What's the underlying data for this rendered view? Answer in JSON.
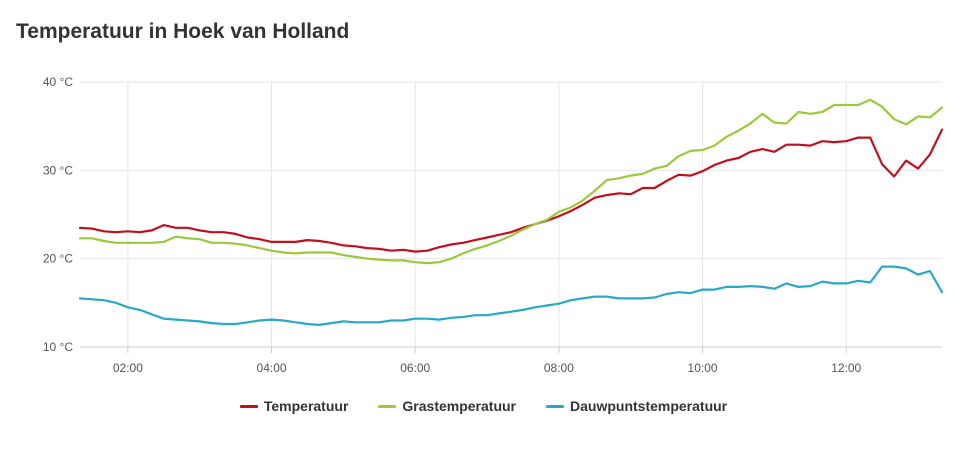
{
  "header": {
    "title": "Temperatuur in Hoek van Holland"
  },
  "chart_data": {
    "type": "line",
    "title": "Temperatuur in Hoek van Holland",
    "xlabel": "",
    "ylabel": "",
    "x_range": [
      "01:20",
      "13:20"
    ],
    "xticks": [
      "02:00",
      "04:00",
      "06:00",
      "08:00",
      "10:00",
      "12:00"
    ],
    "ylim": [
      10,
      40
    ],
    "yticks": [
      "10 °C",
      "20 °C",
      "30 °C",
      "40 °C"
    ],
    "grid": true,
    "legend_position": "bottom",
    "x": [
      "01:20",
      "01:30",
      "01:40",
      "01:50",
      "02:00",
      "02:10",
      "02:20",
      "02:30",
      "02:40",
      "02:50",
      "03:00",
      "03:10",
      "03:20",
      "03:30",
      "03:40",
      "03:50",
      "04:00",
      "04:10",
      "04:20",
      "04:30",
      "04:40",
      "04:50",
      "05:00",
      "05:10",
      "05:20",
      "05:30",
      "05:40",
      "05:50",
      "06:00",
      "06:10",
      "06:20",
      "06:30",
      "06:40",
      "06:50",
      "07:00",
      "07:10",
      "07:20",
      "07:30",
      "07:40",
      "07:50",
      "08:00",
      "08:10",
      "08:20",
      "08:30",
      "08:40",
      "08:50",
      "09:00",
      "09:10",
      "09:20",
      "09:30",
      "09:40",
      "09:50",
      "10:00",
      "10:10",
      "10:20",
      "10:30",
      "10:40",
      "10:50",
      "11:00",
      "11:10",
      "11:20",
      "11:30",
      "11:40",
      "11:50",
      "12:00",
      "12:10",
      "12:20",
      "12:30",
      "12:40",
      "12:50",
      "13:00",
      "13:10",
      "13:20"
    ],
    "series": [
      {
        "name": "Temperatuur",
        "color": "#c0101e",
        "values": [
          23.5,
          23.4,
          23.1,
          23.0,
          23.1,
          23.0,
          23.2,
          23.8,
          23.5,
          23.5,
          23.2,
          23.0,
          23.0,
          22.8,
          22.4,
          22.2,
          21.9,
          21.9,
          21.9,
          22.1,
          22.0,
          21.8,
          21.5,
          21.4,
          21.2,
          21.1,
          20.9,
          21.0,
          20.8,
          20.9,
          21.3,
          21.6,
          21.8,
          22.1,
          22.4,
          22.7,
          23.0,
          23.5,
          23.9,
          24.3,
          24.8,
          25.4,
          26.1,
          26.9,
          27.2,
          27.4,
          27.3,
          28.0,
          28.0,
          28.8,
          29.5,
          29.4,
          29.9,
          30.6,
          31.1,
          31.4,
          32.1,
          32.4,
          32.1,
          32.9,
          32.9,
          32.8,
          33.3,
          33.2,
          33.3,
          33.7,
          33.7,
          30.7,
          29.3,
          31.1,
          30.2,
          31.8,
          34.6
        ]
      },
      {
        "name": "Grastemperatuur",
        "color": "#99c93c",
        "values": [
          22.3,
          22.3,
          22.0,
          21.8,
          21.8,
          21.8,
          21.8,
          21.9,
          22.5,
          22.3,
          22.2,
          21.8,
          21.8,
          21.7,
          21.5,
          21.2,
          20.9,
          20.7,
          20.6,
          20.7,
          20.7,
          20.7,
          20.4,
          20.2,
          20.0,
          19.9,
          19.8,
          19.8,
          19.6,
          19.5,
          19.6,
          20.0,
          20.6,
          21.1,
          21.5,
          22.0,
          22.6,
          23.3,
          23.9,
          24.4,
          25.3,
          25.8,
          26.6,
          27.7,
          28.9,
          29.1,
          29.4,
          29.6,
          30.2,
          30.5,
          31.6,
          32.2,
          32.3,
          32.8,
          33.8,
          34.5,
          35.3,
          36.4,
          35.4,
          35.3,
          36.6,
          36.4,
          36.6,
          37.4,
          37.4,
          37.4,
          38.0,
          37.2,
          35.8,
          35.2,
          36.1,
          36.0,
          37.1
        ]
      },
      {
        "name": "Dauwpuntstemperatuur",
        "color": "#2aa8c7",
        "values": [
          15.5,
          15.4,
          15.3,
          15.0,
          14.5,
          14.2,
          13.7,
          13.2,
          13.1,
          13.0,
          12.9,
          12.7,
          12.6,
          12.6,
          12.8,
          13.0,
          13.1,
          13.0,
          12.8,
          12.6,
          12.5,
          12.7,
          12.9,
          12.8,
          12.8,
          12.8,
          13.0,
          13.0,
          13.2,
          13.2,
          13.1,
          13.3,
          13.4,
          13.6,
          13.6,
          13.8,
          14.0,
          14.2,
          14.5,
          14.7,
          14.9,
          15.3,
          15.5,
          15.7,
          15.7,
          15.5,
          15.5,
          15.5,
          15.6,
          16.0,
          16.2,
          16.1,
          16.5,
          16.5,
          16.8,
          16.8,
          16.9,
          16.8,
          16.6,
          17.2,
          16.8,
          16.9,
          17.4,
          17.2,
          17.2,
          17.5,
          17.3,
          19.1,
          19.1,
          18.9,
          18.2,
          18.6,
          16.2
        ]
      }
    ]
  }
}
